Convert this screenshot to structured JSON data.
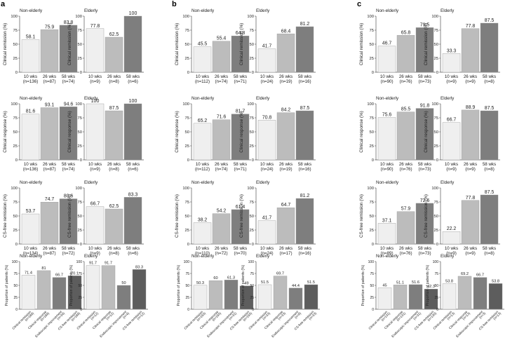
{
  "figure": {
    "panel_labels": [
      "a",
      "b",
      "c"
    ],
    "group_titles": {
      "non_elderly": "Non-elderly",
      "elderly": "Elderly"
    },
    "colors": {
      "light": "#efefef",
      "mid": "#bcbcbc",
      "dark": "#7e7e7e",
      "darker": "#5d5d5d",
      "axis": "#555555",
      "text": "#222222"
    }
  },
  "chart_data": [
    {
      "id": "a-remission-non",
      "type": "bar",
      "panel": "a",
      "title": "Non-elderly",
      "ylabel": "Clinical remission (%)",
      "ylim": [
        0,
        100
      ],
      "yticks": [
        0,
        25,
        50,
        75,
        100
      ],
      "categories": [
        "10 wks",
        "26 wks",
        "58 wks"
      ],
      "ns": [
        "(n=136)",
        "(n=87)",
        "(n=74)"
      ],
      "values": [
        58.1,
        75.9,
        83.8
      ],
      "labels": [
        "58.1",
        "75.9",
        "83.8"
      ]
    },
    {
      "id": "a-remission-eld",
      "type": "bar",
      "panel": "a",
      "title": "Elderly",
      "ylabel": "Clinical remission (%)",
      "ylim": [
        0,
        100
      ],
      "yticks": [
        0,
        25,
        50,
        75,
        100
      ],
      "categories": [
        "10 wks",
        "26 wks",
        "58 wks"
      ],
      "ns": [
        "(n=9)",
        "(n=8)",
        "(n=6)"
      ],
      "values": [
        77.8,
        62.5,
        100
      ],
      "labels": [
        "77.8",
        "62.5",
        "100"
      ]
    },
    {
      "id": "a-response-non",
      "type": "bar",
      "panel": "a",
      "title": "Non-elderly",
      "ylabel": "Clinical response (%)",
      "ylim": [
        0,
        100
      ],
      "yticks": [
        0,
        25,
        50,
        75,
        100
      ],
      "categories": [
        "10 wks",
        "26 wks",
        "58 wks"
      ],
      "ns": [
        "(n=136)",
        "(n=87)",
        "(n=74)"
      ],
      "values": [
        81.6,
        93.1,
        94.6
      ],
      "labels": [
        "81.6",
        "93.1",
        "94.6"
      ]
    },
    {
      "id": "a-response-eld",
      "type": "bar",
      "panel": "a",
      "title": "Elderly",
      "ylabel": "Clinical response (%)",
      "ylim": [
        0,
        100
      ],
      "yticks": [
        0,
        25,
        50,
        75,
        100
      ],
      "categories": [
        "10 wks",
        "26 wks",
        "58 wks"
      ],
      "ns": [
        "(n=9)",
        "(n=8)",
        "(n=6)"
      ],
      "values": [
        100,
        87.5,
        100
      ],
      "labels": [
        "100",
        "87.5",
        "100"
      ]
    },
    {
      "id": "a-csfree-non",
      "type": "bar",
      "panel": "a",
      "title": "Non-elderly",
      "ylabel": "CS-free remission (%)",
      "ylim": [
        0,
        100
      ],
      "yticks": [
        0,
        25,
        50,
        75,
        100
      ],
      "categories": [
        "10 wks",
        "26 wks",
        "58 wks"
      ],
      "ns": [
        "(n=134)",
        "(n=87)",
        "(n=72)"
      ],
      "values": [
        53.7,
        74.7,
        80.6
      ],
      "labels": [
        "53.7",
        "74.7",
        "80.6"
      ]
    },
    {
      "id": "a-csfree-eld",
      "type": "bar",
      "panel": "a",
      "title": "Elderly",
      "ylabel": "CS-free remission (%)",
      "ylim": [
        0,
        100
      ],
      "yticks": [
        0,
        25,
        50,
        75,
        100
      ],
      "categories": [
        "10 wks",
        "26 wks",
        "58 wks"
      ],
      "ns": [
        "(n=9)",
        "(n=8)",
        "(n=6)"
      ],
      "values": [
        66.7,
        62.5,
        83.3
      ],
      "labels": [
        "66.7",
        "62.5",
        "83.3"
      ]
    },
    {
      "id": "a-prop-non",
      "type": "bar",
      "panel": "a",
      "title": "Non-elderly",
      "ylabel": "Proportion of patients (%)",
      "ylim": [
        0,
        100
      ],
      "yticks": [
        0,
        25,
        50,
        75,
        100
      ],
      "categories": [
        "Clinical remission",
        "Clinical response",
        "Endoscopic improvement",
        "CS-free remission"
      ],
      "ns": [
        "(n=188)",
        "(n=188)",
        "(n=34)",
        "(n=188)"
      ],
      "values": [
        71.4,
        81,
        66.7,
        70.1
      ],
      "labels": [
        "71.4",
        "81",
        "66.7",
        "70.1"
      ]
    },
    {
      "id": "a-prop-eld",
      "type": "bar",
      "panel": "a",
      "title": "Elderly",
      "ylabel": "Proportion of patients (%)",
      "ylim": [
        0,
        100
      ],
      "yticks": [
        0,
        25,
        50,
        75,
        100
      ],
      "categories": [
        "Clinical remission",
        "Clinical response",
        "Endoscopic improvement",
        "CS-free remission"
      ],
      "ns": [
        "(n=12)",
        "(n=12)",
        "(n=4)",
        "(n=12)"
      ],
      "values": [
        91.7,
        91.7,
        50,
        83.3
      ],
      "labels": [
        "91.7",
        "91.7",
        "50",
        "83.3"
      ]
    },
    {
      "id": "b-remission-non",
      "type": "bar",
      "panel": "b",
      "title": "Non-elderly",
      "ylabel": "Clinical remission (%)",
      "ylim": [
        0,
        100
      ],
      "yticks": [
        0,
        25,
        50,
        75,
        100
      ],
      "categories": [
        "10 wks",
        "26 wks",
        "58 wks"
      ],
      "ns": [
        "(n=112)",
        "(n=74)",
        "(n=71)"
      ],
      "values": [
        45.5,
        55.4,
        64.8
      ],
      "labels": [
        "45.5",
        "55.4",
        "64.8"
      ]
    },
    {
      "id": "b-remission-eld",
      "type": "bar",
      "panel": "b",
      "title": "Elderly",
      "ylabel": "Clinical remission (%)",
      "ylim": [
        0,
        100
      ],
      "yticks": [
        0,
        25,
        50,
        75,
        100
      ],
      "categories": [
        "10 wks",
        "26 wks",
        "58 wks"
      ],
      "ns": [
        "(n=24)",
        "(n=19)",
        "(n=16)"
      ],
      "values": [
        41.7,
        68.4,
        81.2
      ],
      "labels": [
        "41.7",
        "68.4",
        "81.2"
      ]
    },
    {
      "id": "b-response-non",
      "type": "bar",
      "panel": "b",
      "title": "Non-elderly",
      "ylabel": "Clinical response (%)",
      "ylim": [
        0,
        100
      ],
      "yticks": [
        0,
        25,
        50,
        75,
        100
      ],
      "categories": [
        "10 wks",
        "26 wks",
        "58 wks"
      ],
      "ns": [
        "(n=112)",
        "(n=74)",
        "(n=71)"
      ],
      "values": [
        65.2,
        71.6,
        81.7
      ],
      "labels": [
        "65.2",
        "71.6",
        "81.7"
      ]
    },
    {
      "id": "b-response-eld",
      "type": "bar",
      "panel": "b",
      "title": "Elderly",
      "ylabel": "Clinical response (%)",
      "ylim": [
        0,
        100
      ],
      "yticks": [
        0,
        25,
        50,
        75,
        100
      ],
      "categories": [
        "10 wks",
        "26 wks",
        "58 wks"
      ],
      "ns": [
        "(n=24)",
        "(n=19)",
        "(n=16)"
      ],
      "values": [
        70.8,
        84.2,
        87.5
      ],
      "labels": [
        "70.8",
        "84.2",
        "87.5"
      ]
    },
    {
      "id": "b-csfree-non",
      "type": "bar",
      "panel": "b",
      "title": "Non-elderly",
      "ylabel": "CS-free remission (%)",
      "ylim": [
        0,
        100
      ],
      "yticks": [
        0,
        25,
        50,
        75,
        100
      ],
      "categories": [
        "10 wks",
        "26 wks",
        "58 wks"
      ],
      "ns": [
        "(n=110)",
        "(n=72)",
        "(n=70)"
      ],
      "values": [
        38.2,
        54.2,
        61.4
      ],
      "labels": [
        "38.2",
        "54.2",
        "61.4"
      ]
    },
    {
      "id": "b-csfree-eld",
      "type": "bar",
      "panel": "b",
      "title": "Elderly",
      "ylabel": "CS-free remission (%)",
      "ylim": [
        0,
        100
      ],
      "yticks": [
        0,
        25,
        50,
        75,
        100
      ],
      "categories": [
        "10 wks",
        "26 wks",
        "58 wks"
      ],
      "ns": [
        "(n=24)",
        "(n=17)",
        "(n=16)"
      ],
      "values": [
        41.7,
        64.7,
        81.2
      ],
      "labels": [
        "41.7",
        "64.7",
        "81.2"
      ]
    },
    {
      "id": "b-prop-non",
      "type": "bar",
      "panel": "b",
      "title": "Non-elderly",
      "ylabel": "Proportion of patients (%)",
      "ylim": [
        0,
        100
      ],
      "yticks": [
        0,
        25,
        50,
        75,
        100
      ],
      "categories": [
        "Clinical remission",
        "Clinical response",
        "Endoscopic improvement",
        "CS-free remission"
      ],
      "ns": [
        "(n=155)",
        "(n=155)",
        "(n=31)",
        "(n=155)"
      ],
      "values": [
        50.3,
        60,
        61.3,
        49
      ],
      "labels": [
        "50.3",
        "60",
        "61.3",
        "49"
      ]
    },
    {
      "id": "b-prop-eld",
      "type": "bar",
      "panel": "b",
      "title": "Elderly",
      "ylabel": "Proportion of patients (%)",
      "ylim": [
        0,
        100
      ],
      "yticks": [
        0,
        25,
        50,
        75,
        100
      ],
      "categories": [
        "Clinical remission",
        "Clinical response",
        "Endoscopic improvement",
        "CS-free remission"
      ],
      "ns": [
        "(n=33)",
        "(n=33)",
        "(n=9)",
        "(n=33)"
      ],
      "values": [
        51.5,
        69.7,
        44.4,
        51.5
      ],
      "labels": [
        "51.5",
        "69.7",
        "44.4",
        "51.5"
      ]
    },
    {
      "id": "c-remission-non",
      "type": "bar",
      "panel": "c",
      "title": "Non-elderly",
      "ylabel": "Clinical remission (%)",
      "ylim": [
        0,
        100
      ],
      "yticks": [
        0,
        25,
        50,
        75,
        100
      ],
      "categories": [
        "10 wks",
        "26 wks",
        "58 wks"
      ],
      "ns": [
        "(n=90)",
        "(n=76)",
        "(n=73)"
      ],
      "values": [
        46.7,
        65.8,
        79.5
      ],
      "labels": [
        "46.7",
        "65.8",
        "79.5"
      ]
    },
    {
      "id": "c-remission-eld",
      "type": "bar",
      "panel": "c",
      "title": "Elderly",
      "ylabel": "Clinical remission (%)",
      "ylim": [
        0,
        100
      ],
      "yticks": [
        0,
        25,
        50,
        75,
        100
      ],
      "categories": [
        "10 wks",
        "26 wks",
        "58 wks"
      ],
      "ns": [
        "(n=9)",
        "(n=9)",
        "(n=8)"
      ],
      "values": [
        33.3,
        77.8,
        87.5
      ],
      "labels": [
        "33.3",
        "77.8",
        "87.5"
      ]
    },
    {
      "id": "c-response-non",
      "type": "bar",
      "panel": "c",
      "title": "Non-elderly",
      "ylabel": "Clinical response (%)",
      "ylim": [
        0,
        100
      ],
      "yticks": [
        0,
        25,
        50,
        75,
        100
      ],
      "categories": [
        "10 wks",
        "26 wks",
        "58 wks"
      ],
      "ns": [
        "(n=90)",
        "(n=76)",
        "(n=73)"
      ],
      "values": [
        75.6,
        85.5,
        91.8
      ],
      "labels": [
        "75.6",
        "85.5",
        "91.8"
      ]
    },
    {
      "id": "c-response-eld",
      "type": "bar",
      "panel": "c",
      "title": "Elderly",
      "ylabel": "Clinical response (%)",
      "ylim": [
        0,
        100
      ],
      "yticks": [
        0,
        25,
        50,
        75,
        100
      ],
      "categories": [
        "10 wks",
        "26 wks",
        "58 wks"
      ],
      "ns": [
        "(n=9)",
        "(n=9)",
        "(n=8)"
      ],
      "values": [
        66.7,
        88.9,
        87.5
      ],
      "labels": [
        "66.7",
        "88.9",
        "87.5"
      ]
    },
    {
      "id": "c-csfree-non",
      "type": "bar",
      "panel": "c",
      "title": "Non-elderly",
      "ylabel": "CS-free remission (%)",
      "ylim": [
        0,
        100
      ],
      "yticks": [
        0,
        25,
        50,
        75,
        100
      ],
      "categories": [
        "10 wks",
        "26 wks",
        "58 wks"
      ],
      "ns": [
        "(n=89)",
        "(n=76)",
        "(n=73)"
      ],
      "values": [
        37.1,
        57.9,
        72.6
      ],
      "labels": [
        "37.1",
        "57.9",
        "72.6"
      ]
    },
    {
      "id": "c-csfree-eld",
      "type": "bar",
      "panel": "c",
      "title": "Elderly",
      "ylabel": "CS-free remission (%)",
      "ylim": [
        0,
        100
      ],
      "yticks": [
        0,
        25,
        50,
        75,
        100
      ],
      "categories": [
        "10 wks",
        "26 wks",
        "58 wks"
      ],
      "ns": [
        "(n=9)",
        "(n=9)",
        "(n=8)"
      ],
      "values": [
        22.2,
        77.8,
        87.5
      ],
      "labels": [
        "22.2",
        "77.8",
        "87.5"
      ]
    },
    {
      "id": "c-prop-non",
      "type": "bar",
      "panel": "c",
      "title": "Non-elderly",
      "ylabel": "Proportion of patients (%)",
      "ylim": [
        0,
        100
      ],
      "yticks": [
        0,
        25,
        50,
        75,
        100
      ],
      "categories": [
        "Clinical remission",
        "Clinical response",
        "Endoscopic improvement",
        "CS-free remission"
      ],
      "ns": [
        "(n=131)",
        "(n=131)",
        "(n=31)",
        "(n=130)"
      ],
      "values": [
        45,
        51.1,
        51.6,
        42.3
      ],
      "labels": [
        "45",
        "51.1",
        "51.6",
        "42.3"
      ]
    },
    {
      "id": "c-prop-eld",
      "type": "bar",
      "panel": "c",
      "title": "Elderly",
      "ylabel": "Proportion of patients (%)",
      "ylim": [
        0,
        100
      ],
      "yticks": [
        0,
        25,
        50,
        75,
        100
      ],
      "categories": [
        "Clinical remission",
        "Clinical response",
        "Endoscopic improvement",
        "CS-free remission"
      ],
      "ns": [
        "(n=13)",
        "(n=13)",
        "(n=3)",
        "(n=13)"
      ],
      "values": [
        53.8,
        69.2,
        66.7,
        53.8
      ],
      "labels": [
        "53.8",
        "69.2",
        "66.7",
        "53.8"
      ]
    }
  ]
}
